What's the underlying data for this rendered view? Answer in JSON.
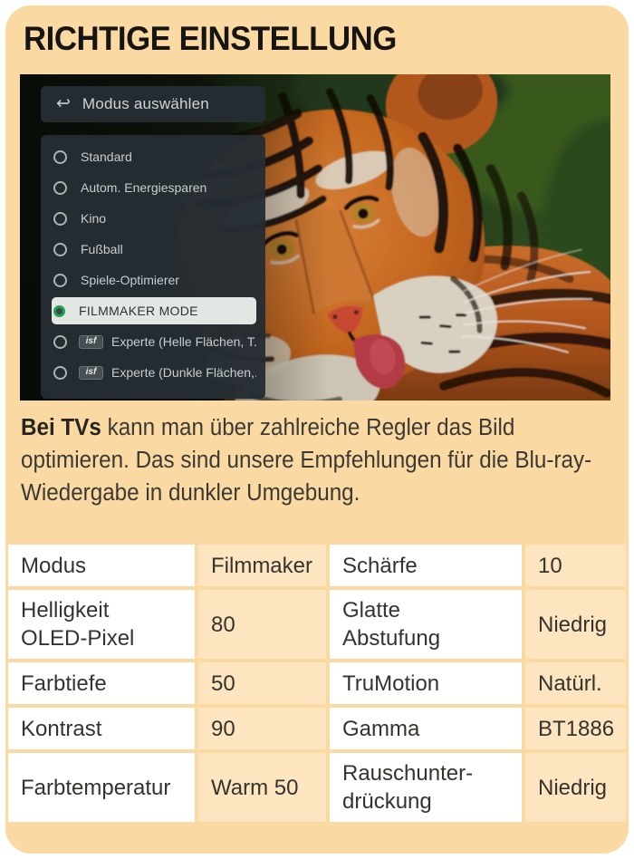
{
  "card": {
    "title": "RICHTIGE EINSTELLUNG"
  },
  "tv_menu": {
    "header": {
      "back_icon": "↩",
      "title": "Modus auswählen"
    },
    "items": [
      {
        "label": "Standard",
        "selected": false,
        "badge": ""
      },
      {
        "label": "Autom. Energiesparen",
        "selected": false,
        "badge": ""
      },
      {
        "label": "Kino",
        "selected": false,
        "badge": ""
      },
      {
        "label": "Fußball",
        "selected": false,
        "badge": ""
      },
      {
        "label": "Spiele-Optimierer",
        "selected": false,
        "badge": ""
      },
      {
        "label": "FILMMAKER MODE",
        "selected": true,
        "badge": ""
      },
      {
        "label": "Experte (Helle Flächen, T...",
        "selected": false,
        "badge": "isf"
      },
      {
        "label": "Experte (Dunkle Flächen,...",
        "selected": false,
        "badge": "isf"
      }
    ]
  },
  "description": {
    "lead": "Bei TVs",
    "text": " kann man über zahlreiche Regler das Bild optimieren. Das sind unsere Empfehlungen für die Blu-ray-Wiedergabe in dunkler Umgebung."
  },
  "settings_table": {
    "rows": [
      [
        "Modus",
        "Filmmaker",
        "Schärfe",
        "10"
      ],
      [
        "Helligkeit\nOLED-Pixel",
        "80",
        "Glatte\nAbstufung",
        "Niedrig"
      ],
      [
        "Farbtiefe",
        "50",
        "TruMotion",
        "Natürl."
      ],
      [
        "Kontrast",
        "90",
        "Gamma",
        "BT1886"
      ],
      [
        "Farbtemperatur",
        "Warm 50",
        "Rauschunter-\ndrückung",
        "Niedrig"
      ]
    ]
  },
  "colors": {
    "card_bg": "#FBD9A2",
    "value_cell_bg": "#FDE5BF",
    "cell_bg": "#FFFFFF",
    "highlight_bg": "#E2E7E3",
    "selected_green": "#1FA352",
    "menu_text": "#C8CED0",
    "ink": "#343330"
  }
}
